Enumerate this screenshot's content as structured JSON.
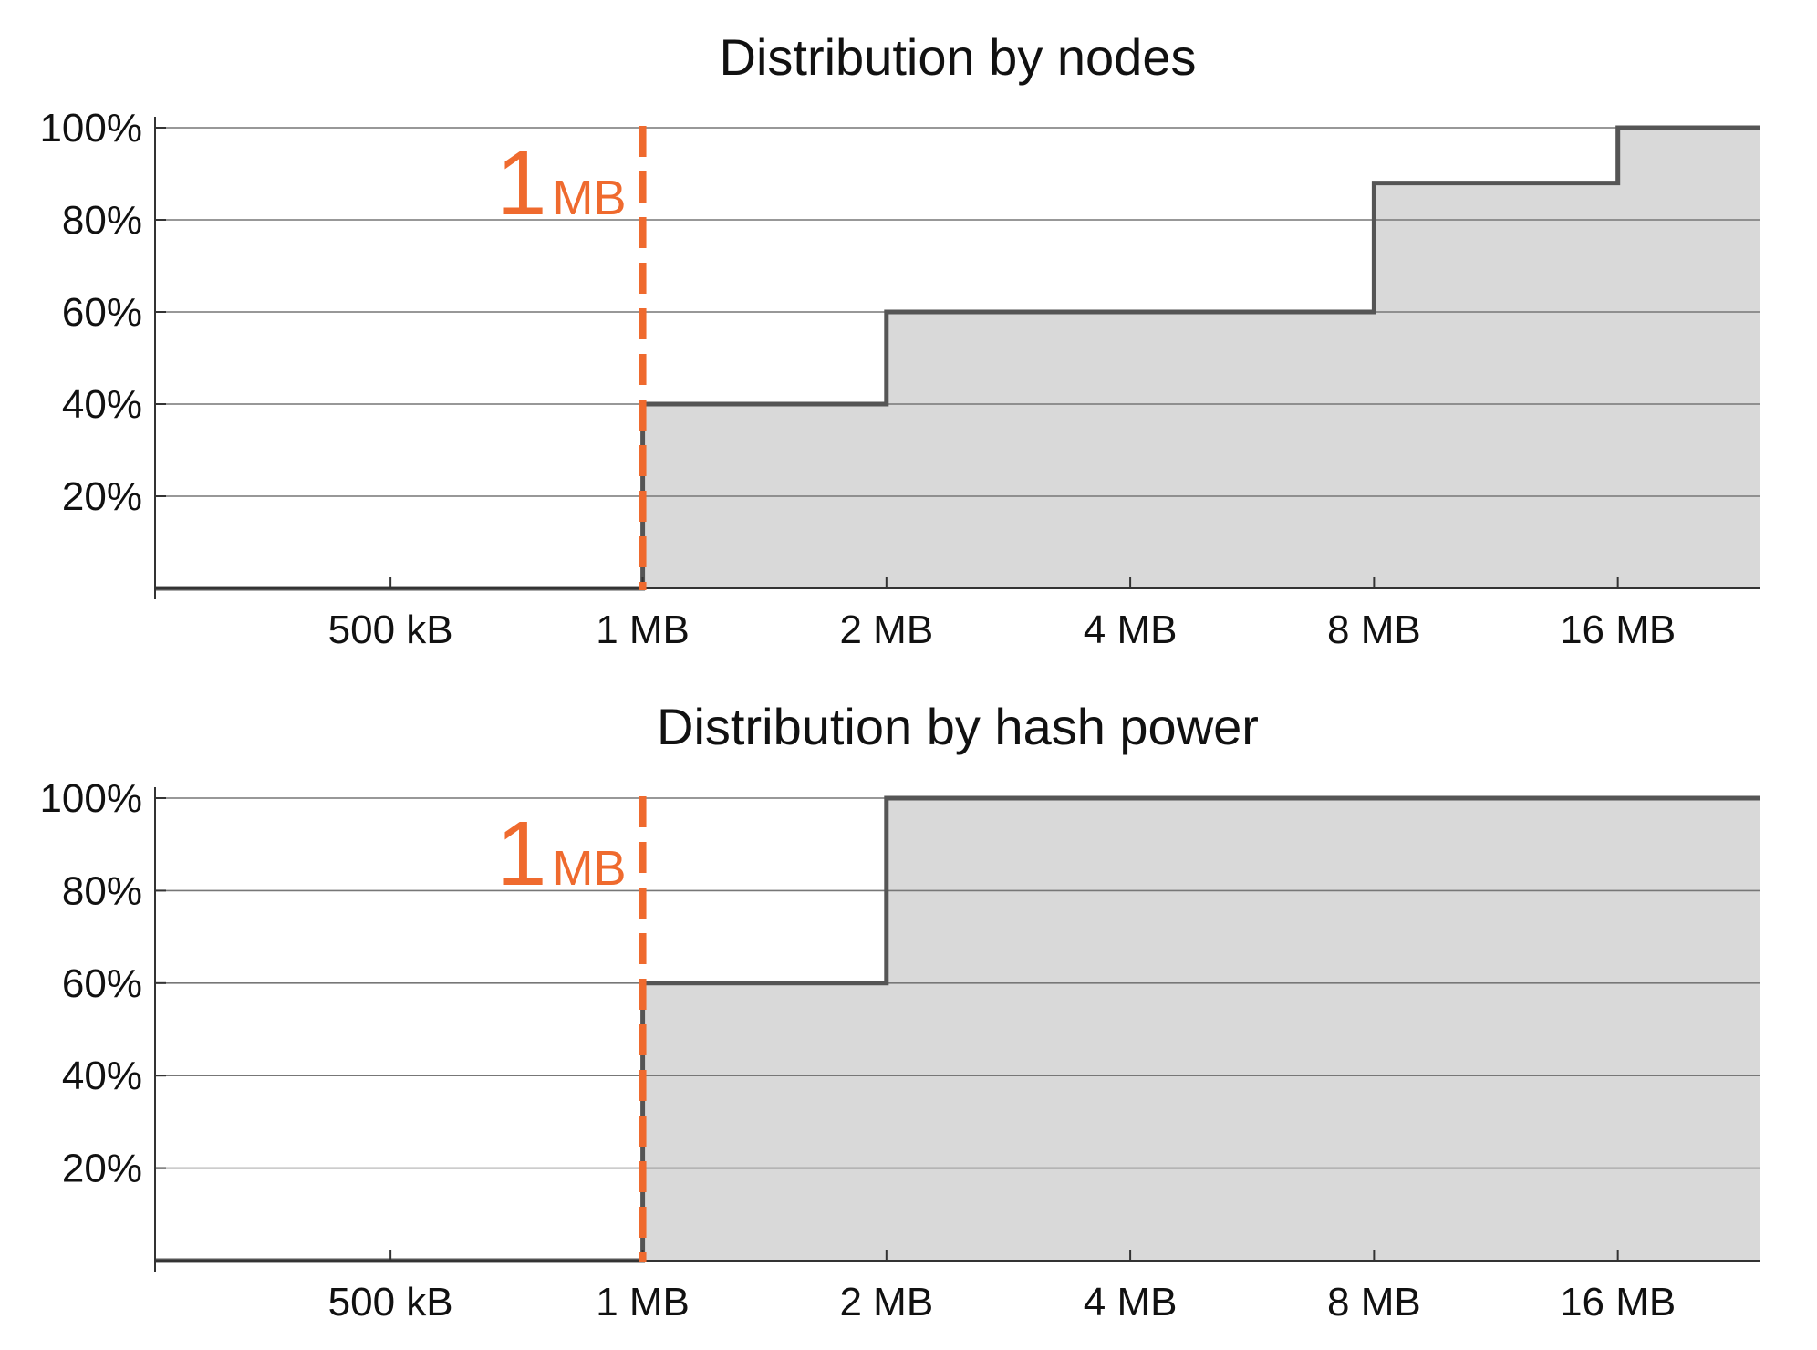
{
  "chart_data": [
    {
      "type": "area",
      "title": "Distribution by nodes",
      "step": "cumulative",
      "x_scale": "log2",
      "xlim": [
        "256 kB",
        "24 MB"
      ],
      "ylim": [
        0,
        100
      ],
      "y_ticks": [
        "20%",
        "40%",
        "60%",
        "80%",
        "100%"
      ],
      "y_tick_values": [
        20,
        40,
        60,
        80,
        100
      ],
      "x_ticks": [
        "500 kB",
        "1 MB",
        "2 MB",
        "4 MB",
        "8 MB",
        "16 MB"
      ],
      "x_tick_values": [
        "500 kB",
        "1 MB",
        "2 MB",
        "4 MB",
        "8 MB",
        "16 MB"
      ],
      "points": [
        {
          "x": "256 kB",
          "y": 0
        },
        {
          "x": "1 MB",
          "y": 0
        },
        {
          "x": "1 MB",
          "y": 40
        },
        {
          "x": "2 MB",
          "y": 40
        },
        {
          "x": "2 MB",
          "y": 60
        },
        {
          "x": "8 MB",
          "y": 60
        },
        {
          "x": "8 MB",
          "y": 88
        },
        {
          "x": "16 MB",
          "y": 88
        },
        {
          "x": "16 MB",
          "y": 100
        },
        {
          "x": "24 MB",
          "y": 100
        }
      ],
      "grid": "horizontal",
      "marker": {
        "x": "1 MB",
        "label_number": "1",
        "label_unit": "MB",
        "style": "dashed"
      },
      "colors": {
        "fill": "#d9d9d9",
        "line": "#555555",
        "marker": "#ef6a2e",
        "grid": "#777777"
      }
    },
    {
      "type": "area",
      "title": "Distribution by hash power",
      "step": "cumulative",
      "x_scale": "log2",
      "xlim": [
        "256 kB",
        "24 MB"
      ],
      "ylim": [
        0,
        100
      ],
      "y_ticks": [
        "20%",
        "40%",
        "60%",
        "80%",
        "100%"
      ],
      "y_tick_values": [
        20,
        40,
        60,
        80,
        100
      ],
      "x_ticks": [
        "500 kB",
        "1 MB",
        "2 MB",
        "4 MB",
        "8 MB",
        "16 MB"
      ],
      "x_tick_values": [
        "500 kB",
        "1 MB",
        "2 MB",
        "4 MB",
        "8 MB",
        "16 MB"
      ],
      "points": [
        {
          "x": "256 kB",
          "y": 0
        },
        {
          "x": "1 MB",
          "y": 0
        },
        {
          "x": "1 MB",
          "y": 60
        },
        {
          "x": "2 MB",
          "y": 60
        },
        {
          "x": "2 MB",
          "y": 100
        },
        {
          "x": "24 MB",
          "y": 100
        }
      ],
      "grid": "horizontal",
      "marker": {
        "x": "1 MB",
        "label_number": "1",
        "label_unit": "MB",
        "style": "dashed"
      },
      "colors": {
        "fill": "#d9d9d9",
        "line": "#555555",
        "marker": "#ef6a2e",
        "grid": "#777777"
      }
    }
  ]
}
